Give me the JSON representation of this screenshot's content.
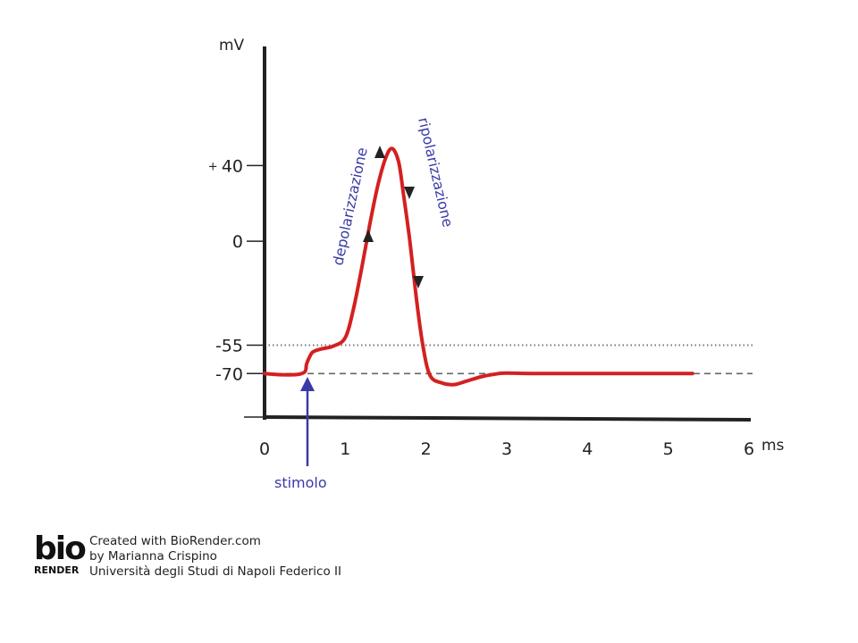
{
  "chart_data": {
    "type": "line",
    "x_unit": "ms",
    "y_unit": "mV",
    "xlim": [
      0,
      6
    ],
    "ylim": [
      -93,
      103
    ],
    "x_ticks": [
      "0",
      "1",
      "2",
      "3",
      "4",
      "5",
      "6"
    ],
    "x_tick_values": [
      0,
      1,
      2,
      3,
      4,
      5,
      6
    ],
    "y_ticks": [
      {
        "value": 40,
        "prefix": "+",
        "label": "40"
      },
      {
        "value": 0,
        "prefix": "",
        "label": "0"
      },
      {
        "value": -55,
        "prefix": "",
        "label": "-55"
      },
      {
        "value": -70,
        "prefix": "",
        "label": "-70"
      }
    ],
    "reference_lines": [
      {
        "value": -55,
        "style": "dotted"
      },
      {
        "value": -70,
        "style": "dashed"
      }
    ],
    "series": [
      {
        "color": "#d42020",
        "x": [
          0.0,
          0.2,
          0.4,
          0.5,
          0.52,
          0.56,
          0.6,
          0.7,
          0.85,
          1.0,
          1.1,
          1.2,
          1.3,
          1.4,
          1.5,
          1.58,
          1.66,
          1.72,
          1.8,
          1.88,
          1.96,
          2.05,
          2.2,
          2.35,
          2.5,
          2.7,
          2.9,
          3.0,
          3.3,
          4.0,
          5.0,
          5.3
        ],
        "y": [
          -70,
          -70.6,
          -70.5,
          -69,
          -65,
          -61,
          -58.5,
          -57,
          -55.5,
          -51,
          -36,
          -15,
          8,
          29,
          44,
          49,
          42,
          25,
          0,
          -30,
          -55,
          -71,
          -75,
          -75.8,
          -74,
          -71.5,
          -70,
          -69.7,
          -70,
          -70,
          -70,
          -70
        ]
      }
    ],
    "annotations": [
      {
        "text": "depolarizzazione",
        "direction": "up"
      },
      {
        "text": "ripolarizzazione",
        "direction": "down"
      },
      {
        "text": "stimolo",
        "at_x": 0.53,
        "color": "#3a3aa8"
      }
    ]
  },
  "footer": {
    "logo_top": "bio",
    "logo_bottom": "RENDER",
    "line1": "Created with BioRender.com",
    "line2": "by Marianna Crispino",
    "line3": "Università degli Studi di Napoli Federico II"
  }
}
